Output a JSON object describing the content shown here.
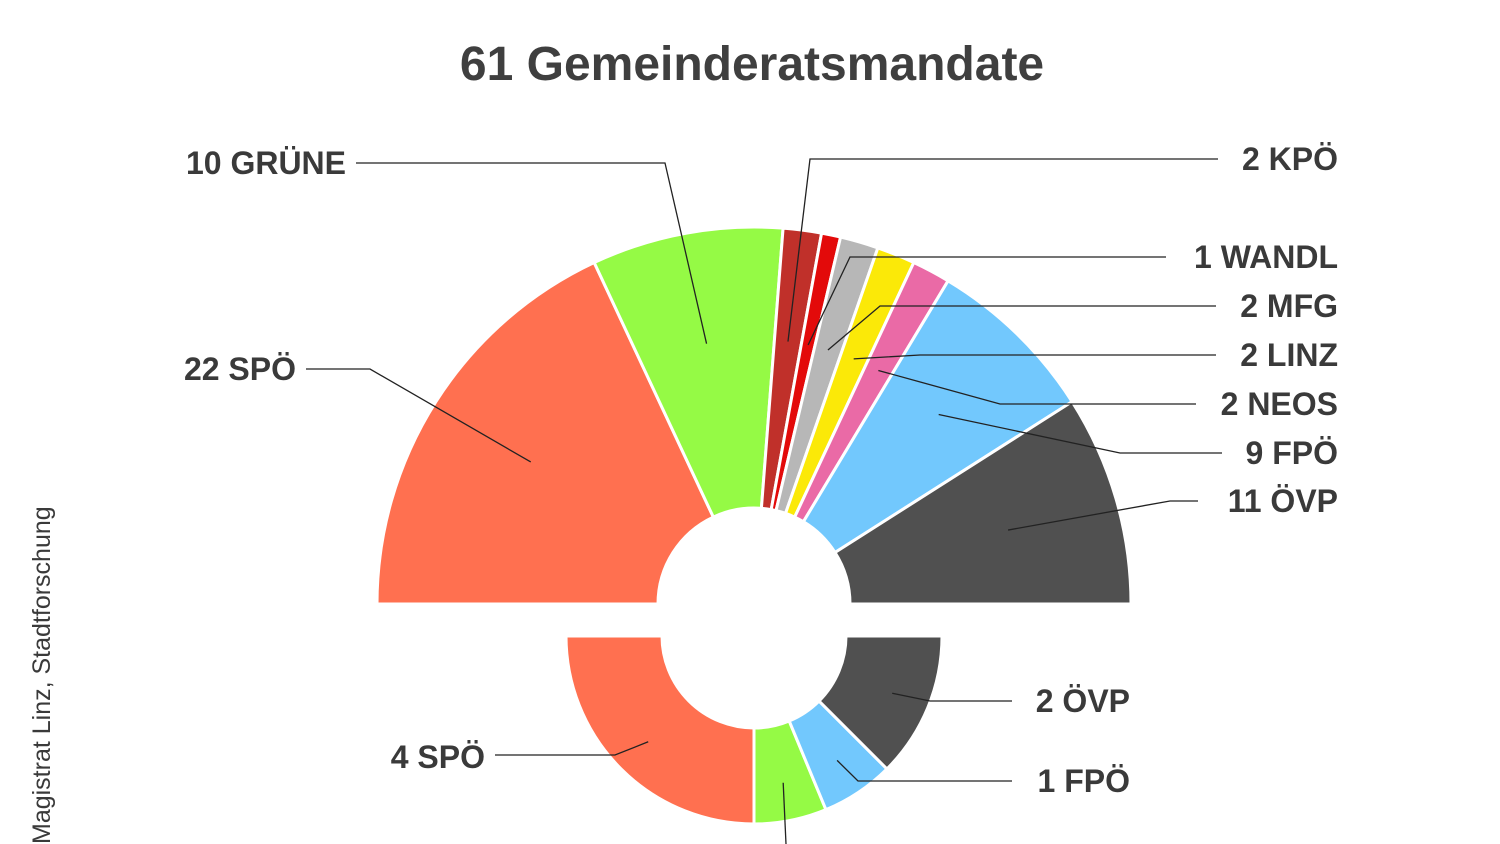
{
  "source_text": "Magistrat Linz, Stadtforschung",
  "chart_data": [
    {
      "type": "pie",
      "title": "61 Gemeinderatsmandate",
      "slices": [
        {
          "value": 22,
          "label": "22  SPÖ",
          "color": "#ff7050"
        },
        {
          "value": 10,
          "label": "10  GRÜNE",
          "color": "#95fa45"
        },
        {
          "value": 2,
          "label": "2  KPÖ",
          "color": "#c0302a"
        },
        {
          "value": 1,
          "label": "1  WANDL",
          "color": "#e30a0a"
        },
        {
          "value": 2,
          "label": "2  MFG",
          "color": "#b7b7b7"
        },
        {
          "value": 2,
          "label": "2  LINZ",
          "color": "#fbe908"
        },
        {
          "value": 2,
          "label": "2  NEOS",
          "color": "#ea6aa6"
        },
        {
          "value": 9,
          "label": "9  FPÖ",
          "color": "#72c8fd"
        },
        {
          "value": 11,
          "label": "11  ÖVP",
          "color": "#505050"
        }
      ]
    },
    {
      "type": "pie",
      "title": "",
      "slices": [
        {
          "value": 4,
          "label": "4  SPÖ",
          "color": "#ff7050"
        },
        {
          "value": 1,
          "label": "",
          "color": "#95fa45"
        },
        {
          "value": 1,
          "label": "1  FPÖ",
          "color": "#72c8fd"
        },
        {
          "value": 2,
          "label": "2  ÖVP",
          "color": "#505050"
        }
      ]
    }
  ]
}
